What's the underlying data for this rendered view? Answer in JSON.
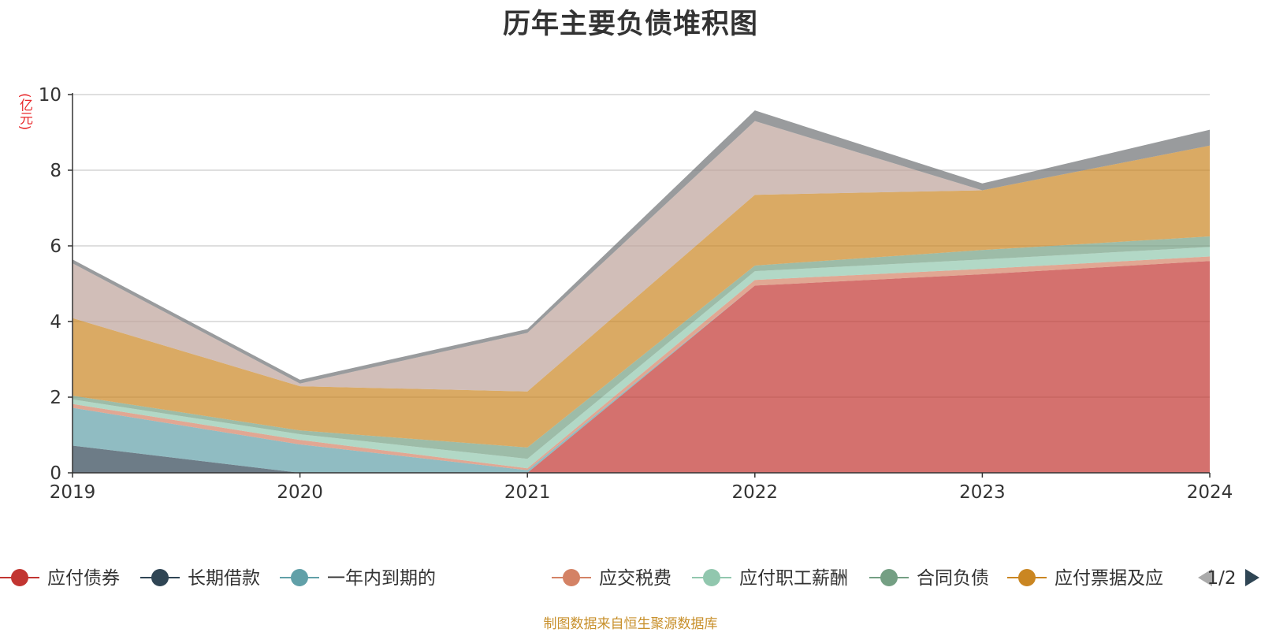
{
  "chart_data": {
    "type": "area",
    "title": "历年主要负债堆积图",
    "unit_label": "(亿元)",
    "source_note": "制图数据来自恒生聚源数据库",
    "x": [
      "2019",
      "2020",
      "2021",
      "2022",
      "2023",
      "2024"
    ],
    "ylim": [
      0,
      10
    ],
    "yticks": [
      0,
      2,
      4,
      6,
      8,
      10
    ],
    "grid": true,
    "stacked": true,
    "legend_position": "bottom",
    "legend_page": "1/2",
    "series": [
      {
        "name": "应付债券",
        "color": "#c23531",
        "values": [
          0,
          0,
          0,
          4.95,
          5.25,
          5.6
        ]
      },
      {
        "name": "长期借款",
        "color": "#2f4554",
        "values": [
          0.72,
          0,
          0,
          0,
          0,
          0
        ]
      },
      {
        "name": "一年内到期的非流动负债",
        "color": "#61a0a8",
        "values": [
          1.0,
          0.75,
          0.07,
          0,
          0,
          0
        ]
      },
      {
        "name": "应交税费",
        "color": "#d48265",
        "values": [
          0.1,
          0.12,
          0.05,
          0.15,
          0.14,
          0.12
        ]
      },
      {
        "name": "应付职工薪酬",
        "color": "#91c7ae",
        "values": [
          0.12,
          0.15,
          0.25,
          0.23,
          0.25,
          0.25
        ]
      },
      {
        "name": "合同负债",
        "color": "#749f83",
        "values": [
          0.1,
          0.1,
          0.3,
          0.15,
          0.25,
          0.28
        ]
      },
      {
        "name": "应付票据及应付账款",
        "color": "#ca8622",
        "values": [
          2.05,
          1.17,
          1.48,
          1.87,
          1.58,
          2.4
        ]
      },
      {
        "name": "",
        "color": "#bda29a",
        "values": [
          1.45,
          0.07,
          1.55,
          1.95,
          0,
          0
        ]
      },
      {
        "name": "",
        "color": "#6e7074",
        "values": [
          0.1,
          0.1,
          0.1,
          0.28,
          0.18,
          0.42
        ]
      }
    ]
  }
}
